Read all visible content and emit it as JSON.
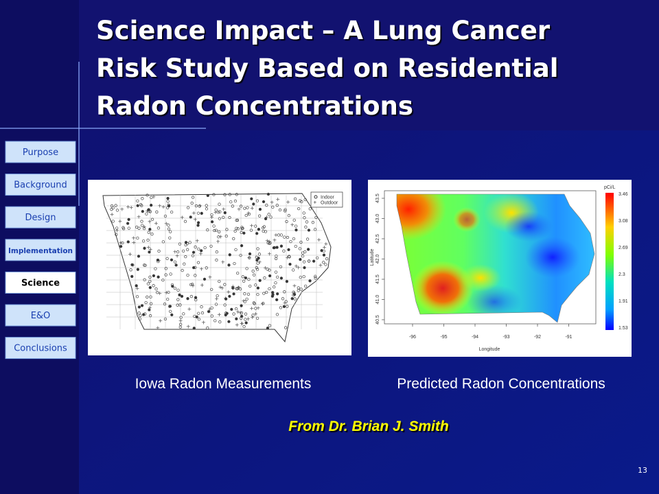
{
  "title": {
    "lines": [
      "Science Impact – A Lung Cancer",
      "Risk Study Based on Residential",
      "Radon Concentrations"
    ]
  },
  "nav": {
    "items": [
      "Purpose",
      "Background",
      "Design",
      "Implementation",
      "Science",
      "E&O",
      "Conclusions"
    ],
    "active": 4
  },
  "figures": [
    {
      "caption": "Iowa Radon Measurements",
      "legend": [
        "Indoor",
        "Outdoor"
      ]
    },
    {
      "caption": "Predicted Radon Concentrations",
      "x_label": "Longitude",
      "y_label": "Latitude",
      "x_ticks": [
        "-96",
        "-95",
        "-94",
        "-93",
        "-92",
        "-91"
      ],
      "y_ticks": [
        "40.5",
        "41.0",
        "41.5",
        "42.0",
        "42.5",
        "43.0",
        "43.5"
      ],
      "colorbar_label": "pCi/L",
      "colorbar_ticks": [
        "3.46",
        "3.08",
        "2.69",
        "2.3",
        "1.91",
        "1.53"
      ]
    }
  ],
  "credit": "From Dr. Brian J. Smith",
  "page_number": "13"
}
